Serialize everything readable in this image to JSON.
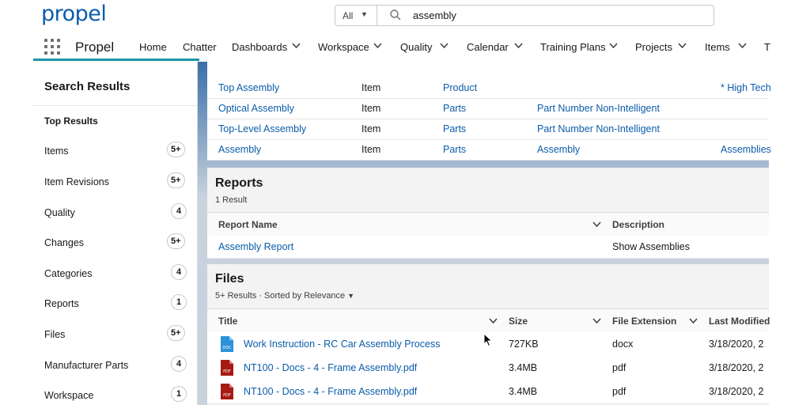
{
  "header": {
    "logo_text": "propel",
    "search": {
      "scope": "All",
      "value": "assembly"
    }
  },
  "nav": {
    "app_name": "Propel",
    "items": [
      {
        "label": "Home",
        "has_menu": false
      },
      {
        "label": "Chatter",
        "has_menu": false
      },
      {
        "label": "Dashboards",
        "has_menu": true
      },
      {
        "label": "Workspace",
        "has_menu": true
      },
      {
        "label": "Quality",
        "has_menu": true
      },
      {
        "label": "Calendar",
        "has_menu": true
      },
      {
        "label": "Training Plans",
        "has_menu": true
      },
      {
        "label": "Projects",
        "has_menu": true
      },
      {
        "label": "Items",
        "has_menu": true
      },
      {
        "label": "T",
        "has_menu": false
      }
    ]
  },
  "sidebar": {
    "title": "Search Results",
    "top_results": "Top Results",
    "items": [
      {
        "label": "Items",
        "count": "5+"
      },
      {
        "label": "Item Revisions",
        "count": "5+"
      },
      {
        "label": "Quality",
        "count": "4"
      },
      {
        "label": "Changes",
        "count": "5+"
      },
      {
        "label": "Categories",
        "count": "4"
      },
      {
        "label": "Reports",
        "count": "1"
      },
      {
        "label": "Files",
        "count": "5+"
      },
      {
        "label": "Manufacturer Parts",
        "count": "4"
      },
      {
        "label": "Workspace",
        "count": "1"
      }
    ]
  },
  "items_results": {
    "rows": [
      {
        "name": "Top Assembly",
        "type": "Item",
        "category": "Product",
        "subcategory": "",
        "extra": "* High Tech"
      },
      {
        "name": "Optical Assembly",
        "type": "Item",
        "category": "Parts",
        "subcategory": "Part Number Non-Intelligent",
        "extra": ""
      },
      {
        "name": "Top-Level Assembly",
        "type": "Item",
        "category": "Parts",
        "subcategory": "Part Number Non-Intelligent",
        "extra": ""
      },
      {
        "name": "Assembly",
        "type": "Item",
        "category": "Parts",
        "subcategory": "Assembly",
        "extra": "Assemblies"
      }
    ]
  },
  "reports": {
    "title": "Reports",
    "count_text": "1 Result",
    "columns": [
      "Report Name",
      "Description"
    ],
    "rows": [
      {
        "name": "Assembly Report",
        "description": "Show Assemblies"
      }
    ]
  },
  "files": {
    "title": "Files",
    "count_text": "5+ Results · Sorted by Relevance",
    "columns": [
      "Title",
      "Size",
      "File Extension",
      "Last Modified"
    ],
    "rows": [
      {
        "icon": "docx-file-icon",
        "title": "Work Instruction - RC Car Assembly Process",
        "size": "727KB",
        "ext": "docx",
        "modified": "3/18/2020, 2"
      },
      {
        "icon": "pdf-file-icon",
        "title": "NT100 - Docs - 4 - Frame Assembly.pdf",
        "size": "3.4MB",
        "ext": "pdf",
        "modified": "3/18/2020, 2"
      },
      {
        "icon": "pdf-file-icon",
        "title": "NT100 - Docs - 4 - Frame Assembly.pdf",
        "size": "3.4MB",
        "ext": "pdf",
        "modified": "3/18/2020, 2"
      }
    ]
  },
  "colors": {
    "link": "#0b5cab",
    "nav_accent": "#1b96a6",
    "pdf": "#a61a14",
    "docx": "#2a93d8"
  }
}
